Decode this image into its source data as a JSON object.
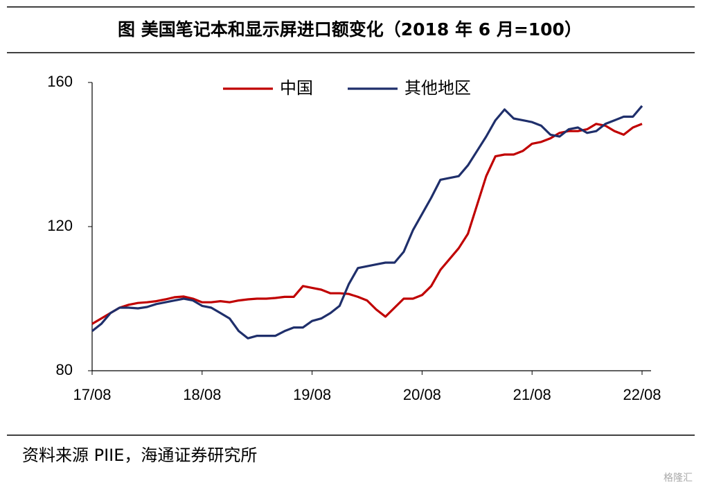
{
  "chart_data": {
    "type": "line",
    "title": "图 美国笔记本和显示屏进口额变化（2018 年 6 月=100）",
    "source": "资料来源 PIIE，海通证券研究所",
    "watermark": "格隆汇",
    "categories": [
      "17/08",
      null,
      null,
      null,
      null,
      null,
      null,
      null,
      null,
      null,
      null,
      null,
      "18/08",
      null,
      null,
      null,
      null,
      null,
      null,
      null,
      null,
      null,
      null,
      null,
      "19/08",
      null,
      null,
      null,
      null,
      null,
      null,
      null,
      null,
      null,
      null,
      null,
      "20/08",
      null,
      null,
      null,
      null,
      null,
      null,
      null,
      null,
      null,
      null,
      null,
      "21/08",
      null,
      null,
      null,
      null,
      null,
      null,
      null,
      null,
      null,
      null,
      null,
      "22/08"
    ],
    "series": [
      {
        "name": "中国",
        "color": "#c00000",
        "values": [
          93,
          94.5,
          96,
          97.5,
          98.3,
          98.8,
          99,
          99.3,
          99.8,
          100.4,
          100.6,
          100,
          99,
          99,
          99.3,
          99,
          99.5,
          99.8,
          100,
          100,
          100.2,
          100.5,
          100.5,
          103.5,
          103,
          102.5,
          101.5,
          101.5,
          101.3,
          100.5,
          99.5,
          97,
          95,
          97.5,
          100,
          100,
          101,
          103.5,
          108,
          111,
          114,
          118,
          126,
          134,
          139.5,
          140,
          140,
          141,
          143,
          143.5,
          144.5,
          146,
          146.5,
          146.5,
          147,
          148.5,
          148,
          146.5,
          145.5,
          147.5,
          148.5
        ]
      },
      {
        "name": "其他地区",
        "color": "#1f2f6b",
        "values": [
          91,
          93,
          96,
          97.5,
          97.5,
          97.3,
          97.7,
          98.5,
          99,
          99.5,
          100,
          99.5,
          98,
          97.5,
          96,
          94.5,
          91,
          89,
          89.7,
          89.7,
          89.7,
          91,
          92,
          92,
          93.8,
          94.5,
          96,
          98,
          104,
          108.5,
          109,
          109.5,
          110,
          110,
          113,
          119,
          123.5,
          128,
          133,
          133.5,
          134,
          137,
          141,
          145,
          149.5,
          152.5,
          150,
          149.5,
          149,
          148,
          145.5,
          145,
          147,
          147.5,
          146,
          146.5,
          148.5,
          149.5,
          150.5,
          150.5,
          153.5
        ]
      }
    ],
    "ylim": [
      80,
      160
    ],
    "yticks": [
      80,
      120,
      160
    ],
    "grid": false,
    "legend": "top"
  }
}
